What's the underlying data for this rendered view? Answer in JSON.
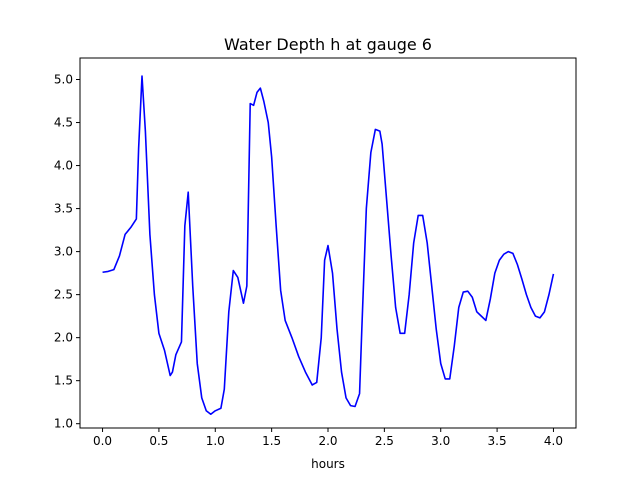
{
  "chart_data": {
    "type": "line",
    "title": "Water Depth h at gauge 6",
    "xlabel": "hours",
    "ylabel": "",
    "xlim": [
      -0.2,
      4.2
    ],
    "ylim": [
      0.95,
      5.25
    ],
    "xticks": [
      0.0,
      0.5,
      1.0,
      1.5,
      2.0,
      2.5,
      3.0,
      3.5,
      4.0
    ],
    "xtick_labels": [
      "0.0",
      "0.5",
      "1.0",
      "1.5",
      "2.0",
      "2.5",
      "3.0",
      "3.5",
      "4.0"
    ],
    "yticks": [
      1.0,
      1.5,
      2.0,
      2.5,
      3.0,
      3.5,
      4.0,
      4.5,
      5.0
    ],
    "ytick_labels": [
      "1.0",
      "1.5",
      "2.0",
      "2.5",
      "3.0",
      "3.5",
      "4.0",
      "4.5",
      "5.0"
    ],
    "grid": false,
    "legend": "none",
    "series": [
      {
        "color": "#0000ff",
        "x": [
          0.0,
          0.05,
          0.1,
          0.15,
          0.2,
          0.25,
          0.3,
          0.32,
          0.35,
          0.38,
          0.42,
          0.46,
          0.5,
          0.55,
          0.6,
          0.62,
          0.65,
          0.7,
          0.73,
          0.76,
          0.8,
          0.84,
          0.88,
          0.92,
          0.96,
          1.0,
          1.05,
          1.08,
          1.12,
          1.16,
          1.2,
          1.25,
          1.28,
          1.31,
          1.34,
          1.37,
          1.4,
          1.43,
          1.47,
          1.5,
          1.54,
          1.58,
          1.62,
          1.68,
          1.74,
          1.8,
          1.86,
          1.9,
          1.94,
          1.97,
          2.0,
          2.04,
          2.08,
          2.12,
          2.16,
          2.2,
          2.24,
          2.28,
          2.3,
          2.34,
          2.38,
          2.42,
          2.46,
          2.48,
          2.52,
          2.56,
          2.6,
          2.64,
          2.68,
          2.72,
          2.76,
          2.8,
          2.84,
          2.88,
          2.92,
          2.96,
          3.0,
          3.04,
          3.08,
          3.12,
          3.16,
          3.2,
          3.24,
          3.28,
          3.32,
          3.36,
          3.4,
          3.44,
          3.48,
          3.52,
          3.56,
          3.6,
          3.64,
          3.68,
          3.72,
          3.76,
          3.8,
          3.84,
          3.88,
          3.92,
          3.96,
          4.0
        ],
        "y": [
          2.76,
          2.77,
          2.79,
          2.95,
          3.2,
          3.28,
          3.38,
          4.2,
          5.04,
          4.4,
          3.2,
          2.5,
          2.05,
          1.85,
          1.56,
          1.6,
          1.8,
          1.95,
          3.3,
          3.69,
          2.6,
          1.7,
          1.3,
          1.15,
          1.11,
          1.15,
          1.18,
          1.4,
          2.3,
          2.78,
          2.7,
          2.4,
          2.6,
          4.72,
          4.7,
          4.85,
          4.9,
          4.75,
          4.5,
          4.1,
          3.3,
          2.55,
          2.2,
          2.0,
          1.78,
          1.6,
          1.45,
          1.48,
          2.0,
          2.9,
          3.07,
          2.75,
          2.1,
          1.6,
          1.3,
          1.21,
          1.2,
          1.35,
          2.1,
          3.5,
          4.15,
          4.42,
          4.4,
          4.25,
          3.6,
          2.95,
          2.35,
          2.05,
          2.05,
          2.5,
          3.1,
          3.42,
          3.42,
          3.1,
          2.6,
          2.1,
          1.7,
          1.52,
          1.52,
          1.9,
          2.35,
          2.53,
          2.54,
          2.47,
          2.3,
          2.25,
          2.2,
          2.45,
          2.75,
          2.9,
          2.97,
          3.0,
          2.98,
          2.85,
          2.68,
          2.5,
          2.35,
          2.25,
          2.23,
          2.3,
          2.5,
          2.74
        ]
      }
    ]
  }
}
